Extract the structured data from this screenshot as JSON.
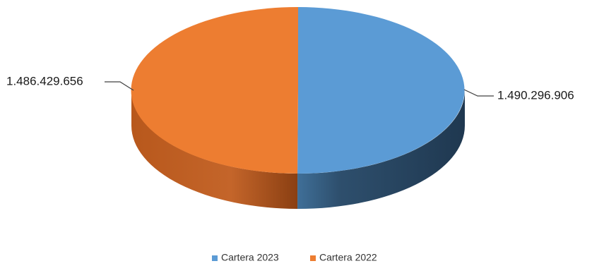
{
  "chart_data": {
    "type": "pie",
    "style": "3d",
    "categories": [
      "Cartera 2023",
      "Cartera 2022"
    ],
    "values": [
      1490296906,
      1486429656
    ],
    "data_labels": [
      "1.490.296.906",
      "1.486.429.656"
    ],
    "legend_position": "bottom",
    "colors": {
      "Cartera 2023": "#5b9bd5",
      "Cartera 2022": "#ed7d31"
    }
  }
}
